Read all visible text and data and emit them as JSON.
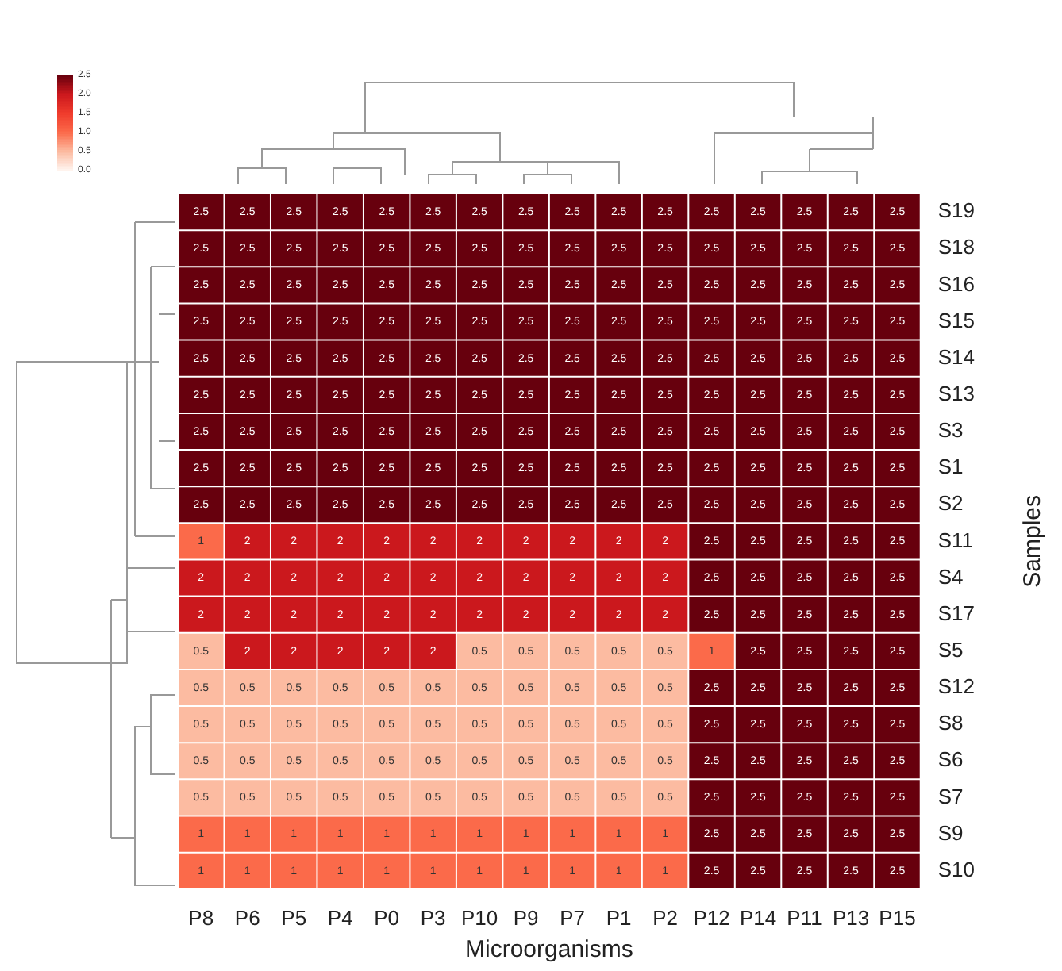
{
  "chart_data": {
    "type": "heatmap",
    "xlabel": "Microorganisms",
    "ylabel": "Samples",
    "categories": [
      "P8",
      "P6",
      "P5",
      "P4",
      "P0",
      "P3",
      "P10",
      "P9",
      "P7",
      "P1",
      "P2",
      "P12",
      "P14",
      "P11",
      "P13",
      "P15"
    ],
    "y_categories": [
      "S19",
      "S18",
      "S16",
      "S15",
      "S14",
      "S13",
      "S3",
      "S1",
      "S2",
      "S11",
      "S4",
      "S17",
      "S5",
      "S12",
      "S8",
      "S6",
      "S7",
      "S9",
      "S10"
    ],
    "cells": [
      [
        2.5,
        2.5,
        2.5,
        2.5,
        2.5,
        2.5,
        2.5,
        2.5,
        2.5,
        2.5,
        2.5,
        2.5,
        2.5,
        2.5,
        2.5,
        2.5
      ],
      [
        2.5,
        2.5,
        2.5,
        2.5,
        2.5,
        2.5,
        2.5,
        2.5,
        2.5,
        2.5,
        2.5,
        2.5,
        2.5,
        2.5,
        2.5,
        2.5
      ],
      [
        2.5,
        2.5,
        2.5,
        2.5,
        2.5,
        2.5,
        2.5,
        2.5,
        2.5,
        2.5,
        2.5,
        2.5,
        2.5,
        2.5,
        2.5,
        2.5
      ],
      [
        2.5,
        2.5,
        2.5,
        2.5,
        2.5,
        2.5,
        2.5,
        2.5,
        2.5,
        2.5,
        2.5,
        2.5,
        2.5,
        2.5,
        2.5,
        2.5
      ],
      [
        2.5,
        2.5,
        2.5,
        2.5,
        2.5,
        2.5,
        2.5,
        2.5,
        2.5,
        2.5,
        2.5,
        2.5,
        2.5,
        2.5,
        2.5,
        2.5
      ],
      [
        2.5,
        2.5,
        2.5,
        2.5,
        2.5,
        2.5,
        2.5,
        2.5,
        2.5,
        2.5,
        2.5,
        2.5,
        2.5,
        2.5,
        2.5,
        2.5
      ],
      [
        2.5,
        2.5,
        2.5,
        2.5,
        2.5,
        2.5,
        2.5,
        2.5,
        2.5,
        2.5,
        2.5,
        2.5,
        2.5,
        2.5,
        2.5,
        2.5
      ],
      [
        2.5,
        2.5,
        2.5,
        2.5,
        2.5,
        2.5,
        2.5,
        2.5,
        2.5,
        2.5,
        2.5,
        2.5,
        2.5,
        2.5,
        2.5,
        2.5
      ],
      [
        2.5,
        2.5,
        2.5,
        2.5,
        2.5,
        2.5,
        2.5,
        2.5,
        2.5,
        2.5,
        2.5,
        2.5,
        2.5,
        2.5,
        2.5,
        2.5
      ],
      [
        1,
        2,
        2,
        2,
        2,
        2,
        2,
        2,
        2,
        2,
        2,
        2.5,
        2.5,
        2.5,
        2.5,
        2.5
      ],
      [
        2,
        2,
        2,
        2,
        2,
        2,
        2,
        2,
        2,
        2,
        2,
        2.5,
        2.5,
        2.5,
        2.5,
        2.5
      ],
      [
        2,
        2,
        2,
        2,
        2,
        2,
        2,
        2,
        2,
        2,
        2,
        2.5,
        2.5,
        2.5,
        2.5,
        2.5
      ],
      [
        0.5,
        2,
        2,
        2,
        2,
        2,
        0.5,
        0.5,
        0.5,
        0.5,
        0.5,
        1,
        2.5,
        2.5,
        2.5,
        2.5
      ],
      [
        0.5,
        0.5,
        0.5,
        0.5,
        0.5,
        0.5,
        0.5,
        0.5,
        0.5,
        0.5,
        0.5,
        2.5,
        2.5,
        2.5,
        2.5,
        2.5
      ],
      [
        0.5,
        0.5,
        0.5,
        0.5,
        0.5,
        0.5,
        0.5,
        0.5,
        0.5,
        0.5,
        0.5,
        2.5,
        2.5,
        2.5,
        2.5,
        2.5
      ],
      [
        0.5,
        0.5,
        0.5,
        0.5,
        0.5,
        0.5,
        0.5,
        0.5,
        0.5,
        0.5,
        0.5,
        2.5,
        2.5,
        2.5,
        2.5,
        2.5
      ],
      [
        0.5,
        0.5,
        0.5,
        0.5,
        0.5,
        0.5,
        0.5,
        0.5,
        0.5,
        0.5,
        0.5,
        2.5,
        2.5,
        2.5,
        2.5,
        2.5
      ],
      [
        1,
        1,
        1,
        1,
        1,
        1,
        1,
        1,
        1,
        1,
        1,
        2.5,
        2.5,
        2.5,
        2.5,
        2.5
      ],
      [
        1,
        1,
        1,
        1,
        1,
        1,
        1,
        1,
        1,
        1,
        1,
        2.5,
        2.5,
        2.5,
        2.5,
        2.5
      ]
    ],
    "data_labels": true,
    "clim": [
      0,
      2.5
    ],
    "cticks": [
      {
        "value": 0,
        "label": "0.0"
      },
      {
        "value": 0.5,
        "label": "0.5"
      },
      {
        "value": 1,
        "label": "1.0"
      },
      {
        "value": 1.5,
        "label": "1.5"
      },
      {
        "value": 2,
        "label": "2.0"
      },
      {
        "value": 2.5,
        "label": "2.5"
      }
    ]
  }
}
